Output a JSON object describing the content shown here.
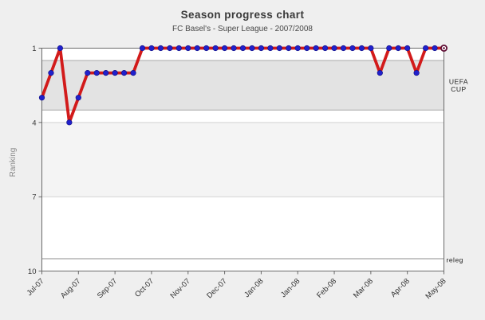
{
  "page": {
    "background": "#efefef"
  },
  "header": {
    "title": "Season progress chart",
    "subtitle": "FC Basel's - Super League - 2007/2008"
  },
  "chart_data": {
    "type": "line",
    "title": "Season progress chart",
    "subtitle": "FC Basel's - Super League - 2007/2008",
    "ylabel": "Ranking",
    "xlabel": "",
    "ylim": [
      1,
      10
    ],
    "y_inverted": true,
    "grid": "zone-bands",
    "legend": "none",
    "y_ticks": [
      1,
      4,
      7,
      10
    ],
    "x_tick_labels": [
      "Jul-07",
      "Aug-07",
      "Sep-07",
      "Oct-07",
      "Nov-07",
      "Dec-07",
      "Jan-08",
      "Jan-08",
      "Feb-08",
      "Mar-08",
      "Apr-08",
      "May-08"
    ],
    "x_label_every_n_points": 4,
    "num_points": 45,
    "values": [
      3,
      2,
      1,
      4,
      3,
      2,
      2,
      2,
      2,
      2,
      2,
      1,
      1,
      1,
      1,
      1,
      1,
      1,
      1,
      1,
      1,
      1,
      1,
      1,
      1,
      1,
      1,
      1,
      1,
      1,
      1,
      1,
      1,
      1,
      1,
      1,
      1,
      2,
      1,
      1,
      1,
      2,
      1,
      1,
      1
    ],
    "last_point_marker": "open-ring",
    "zones": [
      {
        "from_rank": 1.5,
        "to_rank": 3.5,
        "fill": "#e3e3e3",
        "label_lines": [
          "UEFA",
          "CUP"
        ],
        "label_at_rank": 2.5
      },
      {
        "from_rank": 4.0,
        "to_rank": 7.0,
        "fill": "#f4f4f4"
      },
      {
        "from_rank": 9.5,
        "to_rank": 10.0,
        "fill": "#ffffff",
        "label_lines": [
          "releg"
        ],
        "label_at_rank": 9.55
      }
    ],
    "gridlines": [
      {
        "rank": 1.5,
        "color": "#a9a9a9"
      },
      {
        "rank": 3.5,
        "color": "#a9a9a9"
      },
      {
        "rank": 4.0,
        "color": "#d2d2d2"
      },
      {
        "rank": 7.0,
        "color": "#d2d2d2"
      },
      {
        "rank": 9.5,
        "color": "#8c8c8c"
      }
    ],
    "colors": {
      "line": "#d21a1a",
      "marker": "#2020cc",
      "marker_edge": "#10107e",
      "last_marker": "#5e0c33",
      "axis": "#6a6a6a",
      "plot_bg": "#ffffff"
    }
  }
}
